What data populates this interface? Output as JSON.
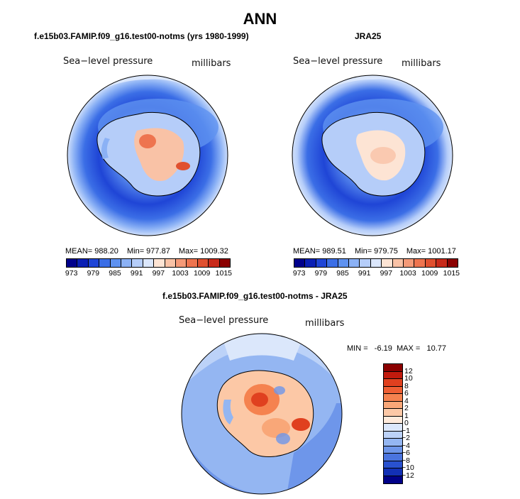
{
  "figure": {
    "title": "ANN",
    "panels": [
      {
        "id": "model",
        "title": "f.e15b03.FAMIP.f09_g16.test00-notms (yrs 1980-1999)",
        "variable": "Sea−level pressure",
        "units": "millibars",
        "stats": {
          "mean": "MEAN= 988.20",
          "min": "Min= 977.87",
          "max": "Max= 1009.32"
        }
      },
      {
        "id": "obs",
        "title": "JRA25",
        "variable": "Sea−level pressure",
        "units": "millibars",
        "stats": {
          "mean": "MEAN= 989.51",
          "min": "Min= 979.75",
          "max": "Max= 1001.17"
        }
      },
      {
        "id": "diff",
        "title": "f.e15b03.FAMIP.f09_g16.test00-notms - JRA25",
        "variable": "Sea−level pressure",
        "units": "millibars",
        "stats": {
          "minmax": "MIN =   -6.19  MAX =   10.77"
        }
      }
    ],
    "abs_colorbar": {
      "labels": [
        "973",
        "979",
        "985",
        "991",
        "997",
        "1003",
        "1009",
        "1015"
      ],
      "colors": [
        "#00008b",
        "#0a1fb4",
        "#1f45d6",
        "#3b6ee6",
        "#5f92f0",
        "#8bb1f5",
        "#b5cdf9",
        "#dbe7fc",
        "#fde4d4",
        "#f9c2a6",
        "#f59a78",
        "#ee744f",
        "#e0502f",
        "#c82a1a",
        "#8b0000"
      ]
    },
    "diff_colorbar": {
      "labels": [
        "12",
        "10",
        "8",
        "6",
        "4",
        "2",
        "1",
        "0",
        "−1",
        "−2",
        "−4",
        "−6",
        "−8",
        "−10",
        "−12"
      ],
      "colors": [
        "#8b0000",
        "#c21a0d",
        "#e0401f",
        "#ef5f34",
        "#f5824f",
        "#f9a778",
        "#fcc8a6",
        "#feeadb",
        "#dbe7fb",
        "#bcd2f8",
        "#94b6f2",
        "#6e96ea",
        "#4a74df",
        "#2951cf",
        "#1230b5",
        "#000088"
      ]
    }
  }
}
